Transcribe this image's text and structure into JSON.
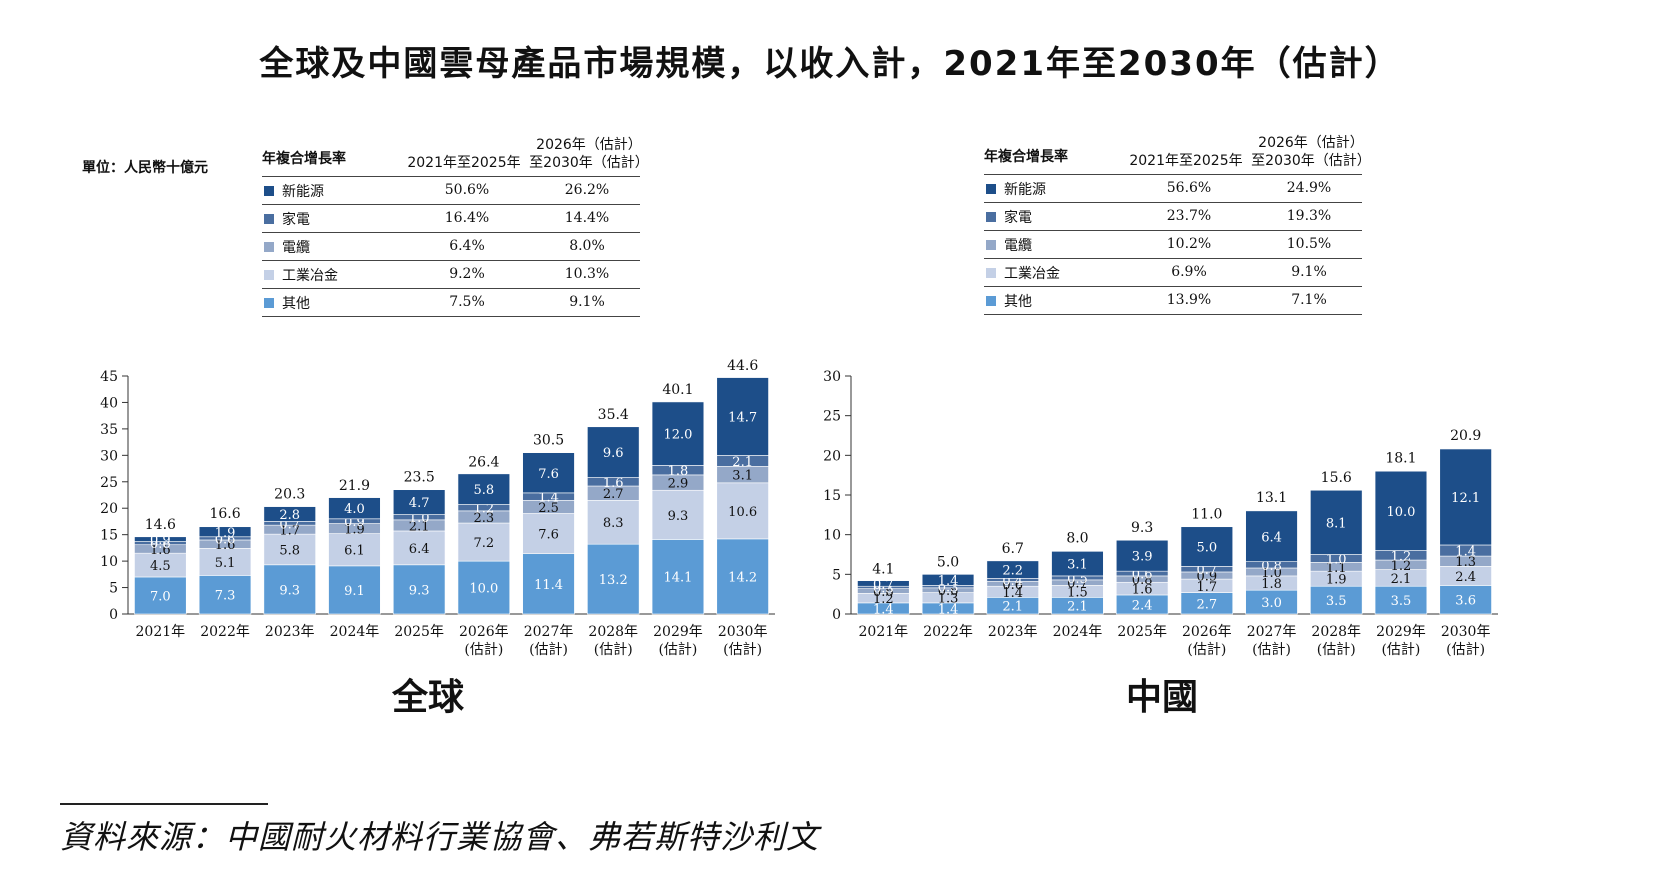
{
  "title": "全球及中國雲母產品市場規模，以收入計，2021年至2030年（估計）",
  "unit_label": "單位：人民幣十億元",
  "legend_header": {
    "label": "年複合增長率",
    "col1": "2021年至2025年",
    "col2_line1": "2026年（估計）",
    "col2_line2": "至2030年（估計）"
  },
  "colors": {
    "新能源": "#1d4e89",
    "家電": "#4a6ea0",
    "電纜": "#94a8c8",
    "工業冶金": "#c4d0e6",
    "其他": "#5b9bd5"
  },
  "global_cagr": [
    {
      "name": "新能源",
      "c1": "50.6%",
      "c2": "26.2%"
    },
    {
      "name": "家電",
      "c1": "16.4%",
      "c2": "14.4%"
    },
    {
      "name": "電纜",
      "c1": "6.4%",
      "c2": "8.0%"
    },
    {
      "name": "工業冶金",
      "c1": "9.2%",
      "c2": "10.3%"
    },
    {
      "name": "其他",
      "c1": "7.5%",
      "c2": "9.1%"
    }
  ],
  "china_cagr": [
    {
      "name": "新能源",
      "c1": "56.6%",
      "c2": "24.9%"
    },
    {
      "name": "家電",
      "c1": "23.7%",
      "c2": "19.3%"
    },
    {
      "name": "電纜",
      "c1": "10.2%",
      "c2": "10.5%"
    },
    {
      "name": "工業冶金",
      "c1": "6.9%",
      "c2": "9.1%"
    },
    {
      "name": "其他",
      "c1": "13.9%",
      "c2": "7.1%"
    }
  ],
  "chart_data": [
    {
      "type": "bar",
      "stacked": true,
      "title": "全球",
      "ylim": [
        0,
        45
      ],
      "yticks": [
        0,
        5,
        10,
        15,
        20,
        25,
        30,
        35,
        40,
        45
      ],
      "categories": [
        [
          "2021年"
        ],
        [
          "2022年"
        ],
        [
          "2023年"
        ],
        [
          "2024年"
        ],
        [
          "2025年"
        ],
        [
          "2026年",
          "(估計)"
        ],
        [
          "2027年",
          "(估計)"
        ],
        [
          "2028年",
          "(估計)"
        ],
        [
          "2029年",
          "(估計)"
        ],
        [
          "2030年",
          "(估計)"
        ]
      ],
      "series": [
        {
          "name": "其他",
          "values": [
            7.0,
            7.3,
            9.3,
            9.1,
            9.3,
            10.0,
            11.4,
            13.2,
            14.1,
            14.2
          ]
        },
        {
          "name": "工業冶金",
          "values": [
            4.5,
            5.1,
            5.8,
            6.1,
            6.4,
            7.2,
            7.6,
            8.3,
            9.3,
            10.6
          ]
        },
        {
          "name": "電纜",
          "values": [
            1.6,
            1.6,
            1.7,
            1.9,
            2.1,
            2.3,
            2.5,
            2.7,
            2.9,
            3.1
          ]
        },
        {
          "name": "家電",
          "values": [
            0.6,
            0.6,
            0.7,
            0.9,
            1.0,
            1.2,
            1.4,
            1.6,
            1.8,
            2.1
          ]
        },
        {
          "name": "新能源",
          "values": [
            0.9,
            1.9,
            2.8,
            4.0,
            4.7,
            5.8,
            7.6,
            9.6,
            12.0,
            14.7
          ]
        }
      ],
      "totals": [
        14.6,
        16.6,
        20.3,
        21.9,
        23.5,
        26.4,
        30.5,
        35.4,
        40.1,
        44.6
      ]
    },
    {
      "type": "bar",
      "stacked": true,
      "title": "中國",
      "ylim": [
        0,
        30
      ],
      "yticks": [
        0,
        5,
        10,
        15,
        20,
        25,
        30
      ],
      "categories": [
        [
          "2021年"
        ],
        [
          "2022年"
        ],
        [
          "2023年"
        ],
        [
          "2024年"
        ],
        [
          "2025年"
        ],
        [
          "2026年",
          "(估計)"
        ],
        [
          "2027年",
          "(估計)"
        ],
        [
          "2028年",
          "(估計)"
        ],
        [
          "2029年",
          "(估計)"
        ],
        [
          "2030年",
          "(估計)"
        ]
      ],
      "series": [
        {
          "name": "其他",
          "values": [
            1.4,
            1.4,
            2.1,
            2.1,
            2.4,
            2.7,
            3.0,
            3.5,
            3.5,
            3.6
          ]
        },
        {
          "name": "工業冶金",
          "values": [
            1.2,
            1.3,
            1.4,
            1.5,
            1.6,
            1.7,
            1.8,
            1.9,
            2.1,
            2.4
          ]
        },
        {
          "name": "電纜",
          "values": [
            0.6,
            0.6,
            0.6,
            0.7,
            0.8,
            0.9,
            1.0,
            1.1,
            1.2,
            1.3
          ]
        },
        {
          "name": "家電",
          "values": [
            0.3,
            0.3,
            0.4,
            0.5,
            0.6,
            0.7,
            0.8,
            1.0,
            1.2,
            1.4
          ]
        },
        {
          "name": "新能源",
          "values": [
            0.7,
            1.4,
            2.2,
            3.1,
            3.9,
            5.0,
            6.4,
            8.1,
            10.0,
            12.1
          ]
        }
      ],
      "totals": [
        4.1,
        5.0,
        6.7,
        8.0,
        9.3,
        11.0,
        13.1,
        15.6,
        18.1,
        20.9
      ]
    }
  ],
  "source": "資料來源：中國耐火材料行業協會、弗若斯特沙利文"
}
